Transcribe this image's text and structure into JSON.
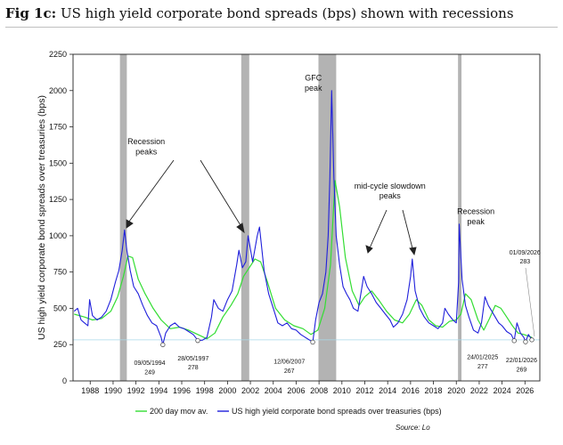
{
  "figure": {
    "label": "Fig 1c:",
    "title": "US high yield corporate bond spreads (bps) shown with recessions",
    "source": "Source: Lo"
  },
  "chart_data": {
    "type": "line",
    "title": "US high yield corporate bond spreads (bps) shown with recessions",
    "ylabel": "US high yield corporate bond spreads over treasuries (bps)",
    "xlabel": "",
    "xlim": [
      1986.5,
      2027.3
    ],
    "ylim": [
      0,
      2250
    ],
    "yticks": [
      0,
      250,
      500,
      750,
      1000,
      1250,
      1500,
      1750,
      2000,
      2250
    ],
    "xticks": [
      1988,
      1990,
      1992,
      1994,
      1996,
      1998,
      2000,
      2002,
      2004,
      2006,
      2008,
      2010,
      2012,
      2014,
      2016,
      2018,
      2020,
      2022,
      2024,
      2026
    ],
    "grid": false,
    "legend_position": "bottom",
    "recessions": [
      [
        1990.6,
        1991.2
      ],
      [
        2001.2,
        2001.9
      ],
      [
        2007.95,
        2009.5
      ],
      [
        2020.15,
        2020.45
      ]
    ],
    "reference_line": 283,
    "series": [
      {
        "name": "US high yield corporate bond spreads over treasuries (bps)",
        "color": "#1f1fdb",
        "x": [
          1986.6,
          1986.9,
          1987.2,
          1987.5,
          1987.8,
          1987.95,
          1988.2,
          1988.6,
          1989.0,
          1989.4,
          1989.8,
          1990.2,
          1990.5,
          1990.8,
          1991.0,
          1991.2,
          1991.5,
          1991.8,
          1992.2,
          1992.6,
          1993.0,
          1993.4,
          1993.8,
          1994.2,
          1994.35,
          1994.6,
          1995.0,
          1995.4,
          1995.8,
          1996.2,
          1996.6,
          1997.0,
          1997.4,
          1997.8,
          1998.2,
          1998.6,
          1998.8,
          1999.2,
          1999.6,
          2000.0,
          2000.4,
          2000.8,
          2001.0,
          2001.3,
          2001.6,
          2001.8,
          2002.2,
          2002.6,
          2002.8,
          2003.2,
          2003.6,
          2004.0,
          2004.4,
          2004.8,
          2005.2,
          2005.6,
          2006.0,
          2006.4,
          2006.8,
          2007.2,
          2007.45,
          2007.7,
          2008.0,
          2008.3,
          2008.6,
          2008.8,
          2008.95,
          2009.1,
          2009.3,
          2009.5,
          2009.8,
          2010.1,
          2010.4,
          2010.7,
          2011.0,
          2011.4,
          2011.7,
          2011.9,
          2012.2,
          2012.6,
          2013.0,
          2013.4,
          2013.8,
          2014.2,
          2014.5,
          2014.9,
          2015.3,
          2015.7,
          2016.0,
          2016.15,
          2016.4,
          2016.8,
          2017.2,
          2017.6,
          2018.0,
          2018.4,
          2018.8,
          2019.0,
          2019.3,
          2019.7,
          2020.0,
          2020.2,
          2020.25,
          2020.5,
          2020.8,
          2021.1,
          2021.5,
          2021.9,
          2022.2,
          2022.5,
          2022.8,
          2023.1,
          2023.4,
          2023.7,
          2024.0,
          2024.4,
          2024.8,
          2025.06,
          2025.3,
          2025.6,
          2025.9,
          2026.05,
          2026.3,
          2026.6
        ],
        "y": [
          480,
          500,
          420,
          400,
          380,
          560,
          450,
          420,
          440,
          480,
          560,
          680,
          760,
          900,
          1040,
          900,
          760,
          650,
          600,
          520,
          450,
          400,
          380,
          300,
          250,
          330,
          380,
          400,
          370,
          360,
          340,
          320,
          280,
          280,
          300,
          440,
          560,
          500,
          480,
          560,
          620,
          800,
          900,
          780,
          820,
          1000,
          820,
          1000,
          1060,
          760,
          600,
          500,
          400,
          380,
          400,
          360,
          350,
          320,
          300,
          280,
          267,
          420,
          540,
          600,
          750,
          1000,
          1400,
          2000,
          1400,
          1000,
          800,
          650,
          600,
          560,
          500,
          480,
          620,
          720,
          650,
          600,
          540,
          500,
          460,
          420,
          370,
          400,
          460,
          560,
          720,
          840,
          620,
          500,
          440,
          400,
          380,
          360,
          400,
          500,
          460,
          420,
          400,
          680,
          1080,
          700,
          520,
          440,
          350,
          330,
          400,
          580,
          520,
          480,
          440,
          400,
          380,
          340,
          320,
          277,
          400,
          330,
          300,
          269,
          320,
          283
        ]
      },
      {
        "name": "200 day mov av.",
        "color": "#33dd33",
        "x": [
          1986.6,
          1987.5,
          1988.2,
          1989.0,
          1989.8,
          1990.4,
          1990.9,
          1991.3,
          1991.7,
          1992.2,
          1992.8,
          1993.5,
          1994.2,
          1995.0,
          1995.8,
          1996.6,
          1997.4,
          1998.2,
          1998.9,
          1999.6,
          2000.3,
          2000.9,
          2001.4,
          2001.9,
          2002.4,
          2002.9,
          2003.5,
          2004.2,
          2005.0,
          2005.8,
          2006.6,
          2007.3,
          2007.9,
          2008.5,
          2009.0,
          2009.4,
          2009.8,
          2010.3,
          2010.9,
          2011.5,
          2012.0,
          2012.6,
          2013.2,
          2013.9,
          2014.6,
          2015.3,
          2015.9,
          2016.5,
          2017.0,
          2017.6,
          2018.2,
          2018.8,
          2019.4,
          2020.0,
          2020.4,
          2020.8,
          2021.3,
          2021.9,
          2022.4,
          2022.9,
          2023.4,
          2023.9,
          2024.4,
          2024.9,
          2025.4,
          2025.9,
          2026.6
        ],
        "y": [
          460,
          440,
          420,
          430,
          480,
          580,
          720,
          860,
          850,
          700,
          600,
          500,
          420,
          360,
          370,
          350,
          320,
          290,
          330,
          440,
          520,
          600,
          720,
          780,
          840,
          820,
          680,
          500,
          420,
          380,
          360,
          320,
          350,
          500,
          800,
          1380,
          1200,
          850,
          620,
          520,
          580,
          620,
          560,
          480,
          420,
          400,
          460,
          560,
          520,
          420,
          380,
          370,
          410,
          420,
          460,
          600,
          560,
          420,
          350,
          430,
          520,
          500,
          440,
          380,
          330,
          320,
          300
        ]
      }
    ],
    "annotations": [
      {
        "text": "Recession",
        "x": 1992.9,
        "y": 1630
      },
      {
        "text": "peaks",
        "x": 1992.9,
        "y": 1560
      },
      {
        "text": "GFC",
        "x": 2007.5,
        "y": 2070
      },
      {
        "text": "peak",
        "x": 2007.5,
        "y": 2000
      },
      {
        "text": "mid-cycle slowdown",
        "x": 2014.2,
        "y": 1325
      },
      {
        "text": "peaks",
        "x": 2014.2,
        "y": 1258
      },
      {
        "text": "Recession",
        "x": 2021.7,
        "y": 1150
      },
      {
        "text": "peak",
        "x": 2021.7,
        "y": 1080
      },
      {
        "text": "09/05/1994",
        "x": 1993.2,
        "y": 110
      },
      {
        "text": "249",
        "x": 1993.2,
        "y": 45
      },
      {
        "text": "28/05/1997",
        "x": 1997.0,
        "y": 140
      },
      {
        "text": "278",
        "x": 1997.0,
        "y": 80
      },
      {
        "text": "12/06/2007",
        "x": 2005.4,
        "y": 120
      },
      {
        "text": "267",
        "x": 2005.4,
        "y": 55
      },
      {
        "text": "24/01/2025",
        "x": 2022.3,
        "y": 150
      },
      {
        "text": "277",
        "x": 2022.3,
        "y": 85
      },
      {
        "text": "22/01/2026",
        "x": 2025.7,
        "y": 130
      },
      {
        "text": "269",
        "x": 2025.7,
        "y": 65
      },
      {
        "text": "01/09/2026",
        "x": 2026.0,
        "y": 870
      },
      {
        "text": "283",
        "x": 2026.0,
        "y": 810
      }
    ]
  }
}
